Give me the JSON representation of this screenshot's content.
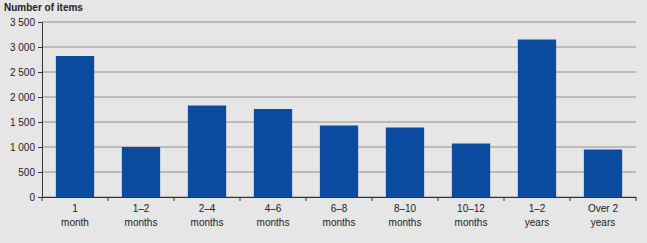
{
  "chart_data": {
    "type": "bar",
    "y_label": "Number of items",
    "categories": [
      "1 month",
      "1–2 months",
      "2–4 months",
      "4–6 months",
      "6–8 months",
      "8–10 months",
      "10–12 months",
      "1–2 years",
      "Over 2 years"
    ],
    "values": [
      2820,
      1000,
      1830,
      1760,
      1430,
      1390,
      1070,
      3150,
      950
    ],
    "color": "#0a4a9f",
    "ylim": [
      0,
      3500
    ],
    "yticks": [
      0,
      500,
      {
        "value": 1000,
        "label": "1 000"
      },
      {
        "value": 1500,
        "label": "1 500"
      },
      {
        "value": 2000,
        "label": "2 000"
      },
      {
        "value": 2500,
        "label": "2 500"
      },
      {
        "value": 3000,
        "label": "3 000"
      },
      {
        "value": 3500,
        "label": "3 500"
      }
    ],
    "grid": true
  }
}
